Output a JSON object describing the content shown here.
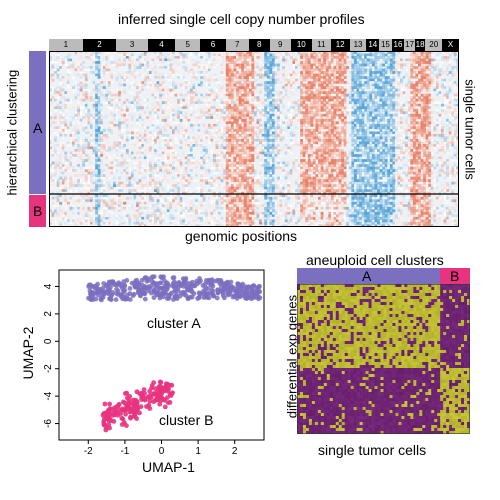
{
  "top_panel": {
    "title": "inferred single cell copy number profiles",
    "left_label": "hierarchical clustering",
    "right_label": "single tumor cells",
    "bottom_label": "genomic positions",
    "clusters": [
      {
        "label": "A",
        "color": "#7b6fc0"
      },
      {
        "label": "B",
        "color": "#e8337f"
      }
    ],
    "chromosomes": [
      "1",
      "2",
      "3",
      "4",
      "5",
      "6",
      "7",
      "8",
      "9",
      "10",
      "11",
      "12",
      "13",
      "14",
      "15",
      "16",
      "17",
      "18",
      "20",
      "X"
    ],
    "colors": {
      "gain": "#e8836a",
      "loss": "#5ba6d8",
      "neutral": "#e9eef3"
    }
  },
  "umap_panel": {
    "chart_data": {
      "type": "scatter",
      "xlabel": "UMAP-1",
      "ylabel": "UMAP-2",
      "xlim": [
        -2.8,
        2.8
      ],
      "ylim": [
        -7.2,
        5.2
      ],
      "xticks": [
        "-2",
        "-1",
        "0",
        "1",
        "2"
      ],
      "yticks": [
        "4",
        "2",
        "0",
        "-2",
        "-4",
        "-6"
      ],
      "series": [
        {
          "name": "cluster A",
          "color": "#7b6fc0"
        },
        {
          "name": "cluster B",
          "color": "#e8337f"
        }
      ]
    }
  },
  "heatmap_panel": {
    "title": "aneuploid cell clusters",
    "left_label": "differential exp genes",
    "bottom_label": "single tumor cells",
    "clusters": [
      {
        "label": "A",
        "color": "#7b6fc0"
      },
      {
        "label": "B",
        "color": "#e8337f"
      }
    ],
    "colors": {
      "high": "#c8c63a",
      "low": "#6b1f6e"
    }
  }
}
